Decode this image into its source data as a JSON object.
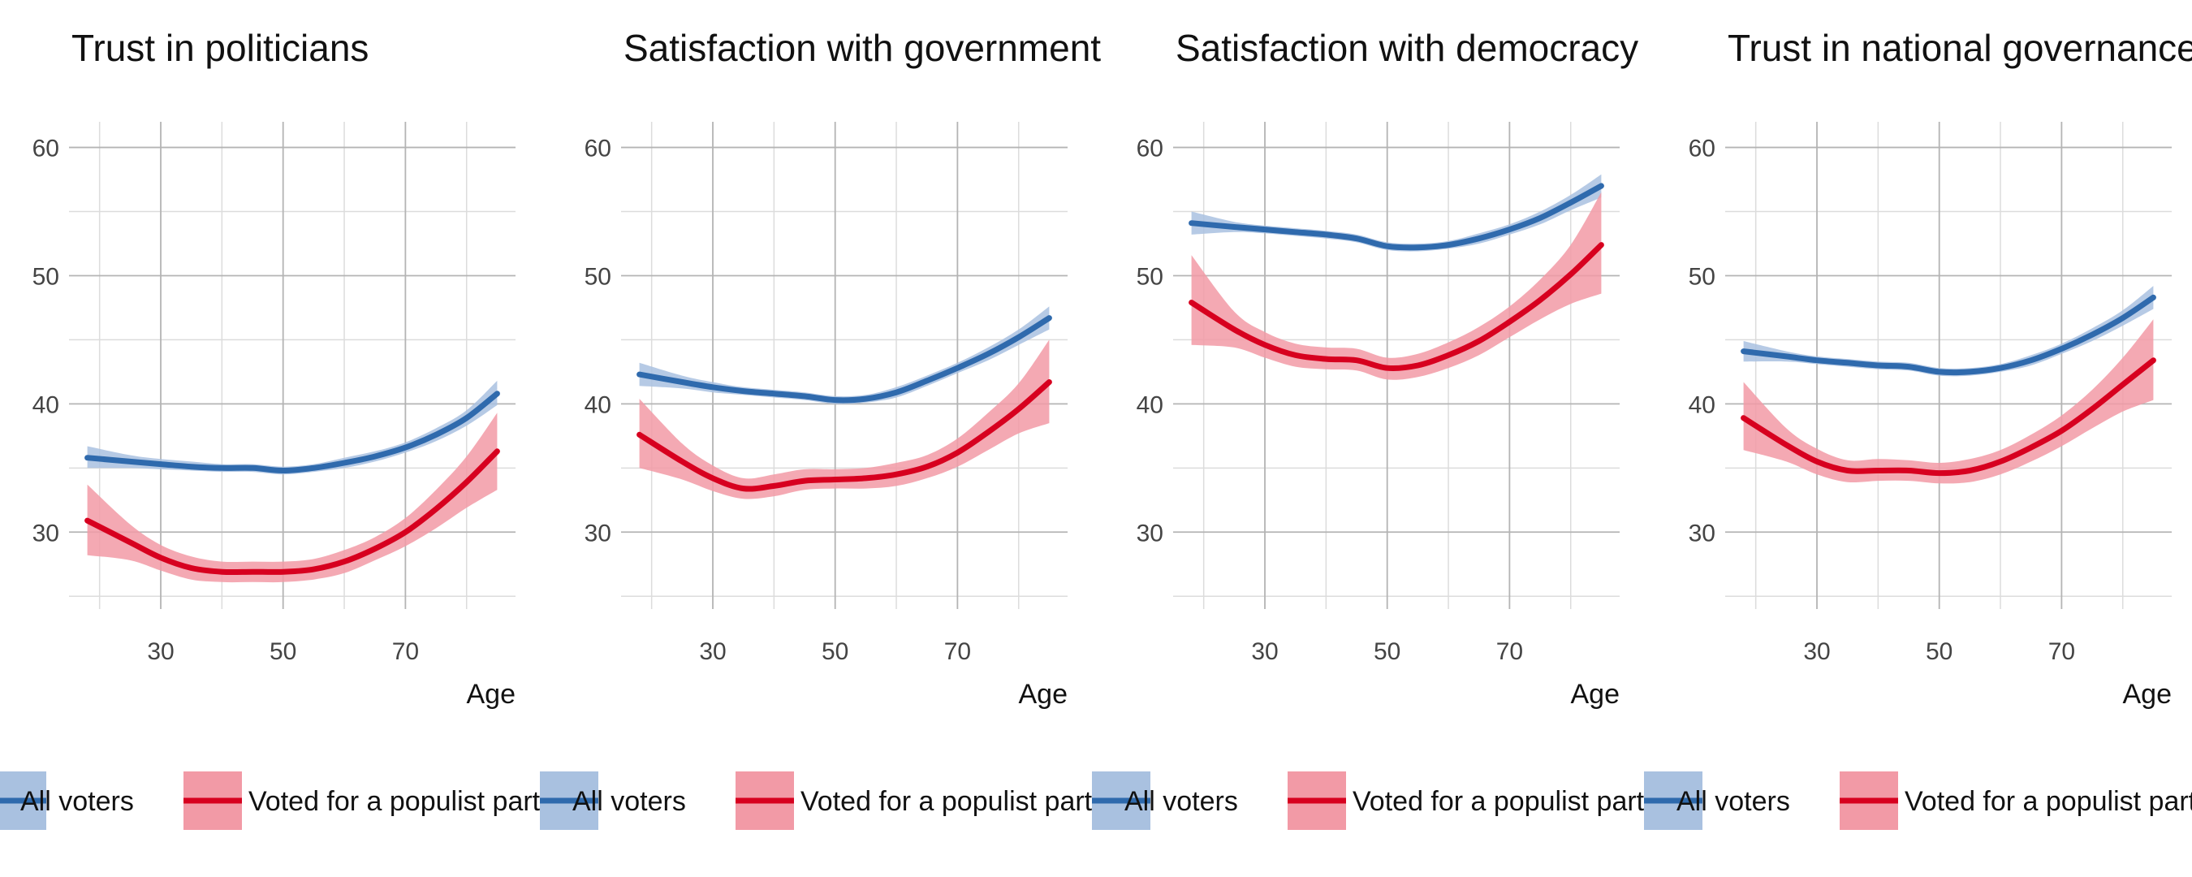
{
  "colors": {
    "all_voters_line": "#2f6aad",
    "all_voters_band": "#a9c1e0",
    "populist_line": "#d7001f",
    "populist_band": "#f29aa6",
    "grid_major": "#b4b4b4",
    "grid_minor": "#dcdcdc"
  },
  "chart_data": [
    {
      "type": "line",
      "title": "Trust in politicians",
      "xlabel": "Age",
      "ylabel": "",
      "xlim": [
        15,
        88
      ],
      "ylim": [
        24,
        62
      ],
      "xticks": [
        30,
        50,
        70
      ],
      "yticks": [
        30,
        40,
        50,
        60
      ],
      "grid": true,
      "legend": "bottom",
      "x": [
        18,
        25,
        30,
        35,
        40,
        45,
        50,
        55,
        60,
        65,
        70,
        75,
        80,
        85
      ],
      "series": [
        {
          "name": "All voters",
          "values": [
            35.8,
            35.5,
            35.3,
            35.1,
            35.0,
            35.0,
            34.8,
            35.0,
            35.4,
            35.9,
            36.6,
            37.6,
            38.9,
            40.8
          ],
          "lower": [
            35.0,
            35.0,
            34.9,
            34.8,
            34.7,
            34.7,
            34.5,
            34.7,
            35.0,
            35.5,
            36.2,
            37.1,
            38.3,
            39.9
          ],
          "upper": [
            36.7,
            36.0,
            35.7,
            35.5,
            35.3,
            35.3,
            35.1,
            35.3,
            35.8,
            36.3,
            37.0,
            38.1,
            39.5,
            41.8
          ]
        },
        {
          "name": "Voted for a populist party",
          "values": [
            30.9,
            29.2,
            28.0,
            27.2,
            26.9,
            26.9,
            26.9,
            27.1,
            27.7,
            28.7,
            30.0,
            31.8,
            33.9,
            36.3
          ],
          "lower": [
            28.2,
            27.8,
            27.0,
            26.3,
            26.1,
            26.1,
            26.1,
            26.3,
            26.8,
            27.8,
            28.9,
            30.3,
            31.9,
            33.3
          ],
          "upper": [
            33.7,
            30.6,
            29.0,
            28.1,
            27.7,
            27.7,
            27.7,
            27.9,
            28.6,
            29.6,
            31.1,
            33.3,
            35.9,
            39.3
          ]
        }
      ]
    },
    {
      "type": "line",
      "title": "Satisfaction with government",
      "xlabel": "Age",
      "ylabel": "",
      "xlim": [
        15,
        88
      ],
      "ylim": [
        24,
        62
      ],
      "xticks": [
        30,
        50,
        70
      ],
      "yticks": [
        30,
        40,
        50,
        60
      ],
      "grid": true,
      "legend": "bottom",
      "x": [
        18,
        25,
        30,
        35,
        40,
        45,
        50,
        55,
        60,
        65,
        70,
        75,
        80,
        85
      ],
      "series": [
        {
          "name": "All voters",
          "values": [
            42.3,
            41.7,
            41.3,
            41.0,
            40.8,
            40.6,
            40.3,
            40.4,
            40.9,
            41.8,
            42.8,
            43.9,
            45.2,
            46.7
          ],
          "lower": [
            41.4,
            41.2,
            40.9,
            40.7,
            40.5,
            40.3,
            40.0,
            40.1,
            40.5,
            41.4,
            42.4,
            43.4,
            44.6,
            45.8
          ],
          "upper": [
            43.2,
            42.2,
            41.7,
            41.3,
            41.1,
            40.9,
            40.6,
            40.7,
            41.3,
            42.2,
            43.2,
            44.4,
            45.8,
            47.6
          ]
        },
        {
          "name": "Voted for a populist party",
          "values": [
            37.6,
            35.5,
            34.2,
            33.4,
            33.6,
            34.0,
            34.1,
            34.2,
            34.5,
            35.1,
            36.2,
            37.8,
            39.6,
            41.7
          ],
          "lower": [
            35.0,
            34.1,
            33.2,
            32.6,
            32.8,
            33.3,
            33.4,
            33.4,
            33.6,
            34.2,
            35.1,
            36.4,
            37.7,
            38.5
          ],
          "upper": [
            40.4,
            36.9,
            35.2,
            34.2,
            34.5,
            34.9,
            34.9,
            35.0,
            35.4,
            36.0,
            37.3,
            39.3,
            41.6,
            45.0
          ]
        }
      ]
    },
    {
      "type": "line",
      "title": "Satisfaction with democracy",
      "xlabel": "Age",
      "ylabel": "",
      "xlim": [
        15,
        88
      ],
      "ylim": [
        24,
        62
      ],
      "xticks": [
        30,
        50,
        70
      ],
      "yticks": [
        30,
        40,
        50,
        60
      ],
      "grid": true,
      "legend": "bottom",
      "x": [
        18,
        25,
        30,
        35,
        40,
        45,
        50,
        55,
        60,
        65,
        70,
        75,
        80,
        85
      ],
      "series": [
        {
          "name": "All voters",
          "values": [
            54.1,
            53.8,
            53.6,
            53.4,
            53.2,
            52.9,
            52.3,
            52.2,
            52.4,
            52.9,
            53.6,
            54.5,
            55.7,
            57.0
          ],
          "lower": [
            53.2,
            53.4,
            53.3,
            53.1,
            52.9,
            52.6,
            52.0,
            51.9,
            52.1,
            52.5,
            53.2,
            54.0,
            55.1,
            56.1
          ],
          "upper": [
            55.0,
            54.2,
            53.9,
            53.7,
            53.5,
            53.2,
            52.6,
            52.5,
            52.7,
            53.3,
            54.0,
            55.0,
            56.3,
            57.9
          ]
        },
        {
          "name": "Voted for a populist party",
          "values": [
            47.9,
            45.8,
            44.6,
            43.8,
            43.5,
            43.4,
            42.8,
            43.0,
            43.8,
            44.9,
            46.4,
            48.1,
            50.1,
            52.4
          ],
          "lower": [
            44.6,
            44.4,
            43.6,
            42.9,
            42.7,
            42.6,
            41.9,
            42.1,
            42.8,
            43.8,
            45.2,
            46.6,
            47.8,
            48.6
          ],
          "upper": [
            51.6,
            47.2,
            45.6,
            44.7,
            44.4,
            44.3,
            43.6,
            43.9,
            44.8,
            46.0,
            47.6,
            49.7,
            52.4,
            56.5
          ]
        }
      ]
    },
    {
      "type": "line",
      "title": "Trust in national governance",
      "xlabel": "Age",
      "ylabel": "",
      "xlim": [
        15,
        88
      ],
      "ylim": [
        24,
        62
      ],
      "xticks": [
        30,
        50,
        70
      ],
      "yticks": [
        30,
        40,
        50,
        60
      ],
      "grid": true,
      "legend": "bottom",
      "x": [
        18,
        25,
        30,
        35,
        40,
        45,
        50,
        55,
        60,
        65,
        70,
        75,
        80,
        85
      ],
      "series": [
        {
          "name": "All voters",
          "values": [
            44.1,
            43.7,
            43.4,
            43.2,
            43.0,
            42.9,
            42.5,
            42.5,
            42.8,
            43.4,
            44.3,
            45.4,
            46.7,
            48.3
          ],
          "lower": [
            43.3,
            43.3,
            43.1,
            42.9,
            42.7,
            42.6,
            42.2,
            42.2,
            42.5,
            43.0,
            43.9,
            44.9,
            46.1,
            47.4
          ],
          "upper": [
            44.9,
            44.1,
            43.7,
            43.5,
            43.3,
            43.2,
            42.8,
            42.8,
            43.1,
            43.8,
            44.7,
            45.9,
            47.3,
            49.2
          ]
        },
        {
          "name": "Voted for a populist party",
          "values": [
            38.9,
            36.8,
            35.5,
            34.8,
            34.8,
            34.8,
            34.6,
            34.8,
            35.5,
            36.6,
            37.9,
            39.6,
            41.5,
            43.4
          ],
          "lower": [
            36.4,
            35.5,
            34.5,
            33.9,
            34.0,
            34.0,
            33.8,
            33.9,
            34.5,
            35.5,
            36.7,
            38.1,
            39.4,
            40.3
          ],
          "upper": [
            41.7,
            38.1,
            36.5,
            35.6,
            35.7,
            35.6,
            35.4,
            35.7,
            36.4,
            37.6,
            39.1,
            41.1,
            43.6,
            46.6
          ]
        }
      ]
    }
  ]
}
